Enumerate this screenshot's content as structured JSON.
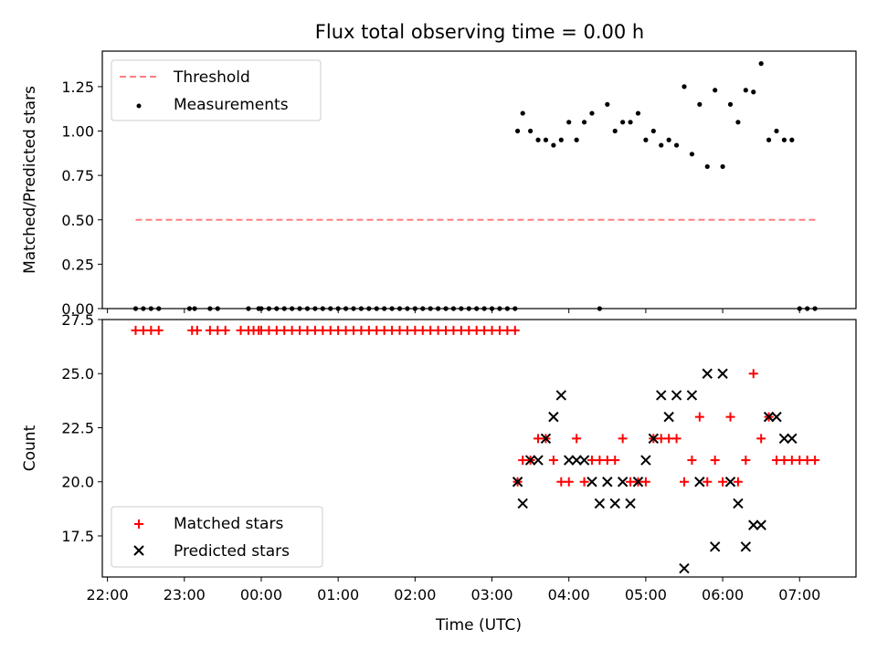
{
  "chart_data": [
    {
      "type": "scatter",
      "title": "Flux total observing time = 0.00 h",
      "xlabel": "",
      "ylabel": "Matched/Predicted stars",
      "xlim": [
        "21:56",
        "07:44"
      ],
      "ylim": [
        0,
        1.45
      ],
      "yticks": [
        "0.00",
        "0.25",
        "0.50",
        "0.75",
        "1.00",
        "1.25"
      ],
      "legend": "top-left",
      "grid": false,
      "threshold": {
        "name": "Threshold",
        "y": 0.5,
        "x_range": [
          "22:22",
          "07:14"
        ],
        "color": "#ff7f7f",
        "style": "dashed"
      },
      "series": [
        {
          "name": "Measurements",
          "color": "#000000",
          "marker": "dot",
          "x": [
            "22:22",
            "22:28",
            "22:34",
            "22:40",
            "23:04",
            "23:08",
            "23:20",
            "23:26",
            "23:50",
            "23:58",
            "00:00",
            "00:06",
            "00:12",
            "00:18",
            "00:24",
            "00:30",
            "00:36",
            "00:42",
            "00:48",
            "00:54",
            "01:00",
            "01:06",
            "01:12",
            "01:18",
            "01:24",
            "01:30",
            "01:36",
            "01:42",
            "01:48",
            "01:54",
            "02:00",
            "02:06",
            "02:12",
            "02:18",
            "02:24",
            "02:30",
            "02:36",
            "02:42",
            "02:48",
            "02:54",
            "03:00",
            "03:06",
            "03:12",
            "03:18",
            "03:20",
            "03:24",
            "03:30",
            "03:36",
            "03:42",
            "03:48",
            "03:54",
            "04:00",
            "04:06",
            "04:12",
            "04:18",
            "04:24",
            "04:30",
            "04:36",
            "04:42",
            "04:48",
            "04:54",
            "05:00",
            "05:06",
            "05:12",
            "05:18",
            "05:24",
            "05:30",
            "05:36",
            "05:42",
            "05:48",
            "05:54",
            "06:00",
            "06:06",
            "06:12",
            "06:18",
            "06:24",
            "06:30",
            "06:36",
            "06:42",
            "06:48",
            "06:54",
            "07:00",
            "07:06",
            "07:12"
          ],
          "y": [
            0,
            0,
            0,
            0,
            0,
            0,
            0,
            0,
            0,
            0,
            0,
            0,
            0,
            0,
            0,
            0,
            0,
            0,
            0,
            0,
            0,
            0,
            0,
            0,
            0,
            0,
            0,
            0,
            0,
            0,
            0,
            0,
            0,
            0,
            0,
            0,
            0,
            0,
            0,
            0,
            0,
            0,
            0,
            0,
            1.0,
            1.1,
            1.0,
            0.95,
            0.95,
            0.92,
            0.95,
            1.05,
            0.95,
            1.05,
            1.1,
            0,
            1.15,
            1.0,
            1.05,
            1.05,
            1.1,
            0.95,
            1.0,
            0.92,
            0.95,
            0.92,
            1.25,
            0.87,
            1.15,
            0.8,
            1.23,
            0.8,
            1.15,
            1.05,
            1.23,
            1.22,
            1.38,
            0.95,
            1.0,
            0.95,
            0.95,
            0,
            0,
            0
          ]
        }
      ]
    },
    {
      "type": "scatter",
      "title": "",
      "xlabel": "Time (UTC)",
      "ylabel": "Count",
      "xlim": [
        "21:56",
        "07:44"
      ],
      "ylim": [
        15.6,
        27.5
      ],
      "yticks": [
        "17.5",
        "20.0",
        "22.5",
        "25.0",
        "27.5"
      ],
      "xticks": [
        "22:00",
        "23:00",
        "00:00",
        "01:00",
        "02:00",
        "03:00",
        "04:00",
        "05:00",
        "06:00",
        "07:00"
      ],
      "legend": "bottom-left",
      "grid": false,
      "series": [
        {
          "name": "Matched stars",
          "color": "#ff0000",
          "marker": "plus",
          "x": [
            "22:22",
            "22:28",
            "22:34",
            "22:40",
            "23:06",
            "23:10",
            "23:20",
            "23:26",
            "23:32",
            "23:44",
            "23:50",
            "23:54",
            "23:58",
            "00:00",
            "00:06",
            "00:12",
            "00:18",
            "00:24",
            "00:30",
            "00:36",
            "00:42",
            "00:48",
            "00:54",
            "01:00",
            "01:06",
            "01:12",
            "01:18",
            "01:24",
            "01:30",
            "01:36",
            "01:42",
            "01:48",
            "01:54",
            "02:00",
            "02:06",
            "02:12",
            "02:18",
            "02:24",
            "02:30",
            "02:36",
            "02:42",
            "02:48",
            "02:54",
            "03:00",
            "03:06",
            "03:12",
            "03:18",
            "03:20",
            "03:24",
            "03:30",
            "03:36",
            "03:42",
            "03:48",
            "03:54",
            "04:00",
            "04:06",
            "04:12",
            "04:18",
            "04:24",
            "04:30",
            "04:36",
            "04:42",
            "04:48",
            "04:54",
            "05:00",
            "05:06",
            "05:12",
            "05:18",
            "05:24",
            "05:30",
            "05:36",
            "05:42",
            "05:48",
            "05:54",
            "06:00",
            "06:06",
            "06:12",
            "06:18",
            "06:24",
            "06:30",
            "06:36",
            "06:42",
            "06:48",
            "06:54",
            "07:00",
            "07:06",
            "07:12"
          ],
          "y": [
            27,
            27,
            27,
            27,
            27,
            27,
            27,
            27,
            27,
            27,
            27,
            27,
            27,
            27,
            27,
            27,
            27,
            27,
            27,
            27,
            27,
            27,
            27,
            27,
            27,
            27,
            27,
            27,
            27,
            27,
            27,
            27,
            27,
            27,
            27,
            27,
            27,
            27,
            27,
            27,
            27,
            27,
            27,
            27,
            27,
            27,
            27,
            20,
            21,
            21,
            22,
            22,
            21,
            20,
            20,
            22,
            20,
            21,
            21,
            21,
            21,
            22,
            20,
            20,
            20,
            22,
            22,
            22,
            22,
            20,
            21,
            23,
            20,
            21,
            20,
            23,
            20,
            21,
            25,
            22,
            23,
            21,
            21,
            21,
            21,
            21,
            21
          ]
        },
        {
          "name": "Predicted stars",
          "color": "#000000",
          "marker": "x",
          "x": [
            "03:20",
            "03:24",
            "03:30",
            "03:36",
            "03:42",
            "03:48",
            "03:54",
            "04:00",
            "04:06",
            "04:12",
            "04:18",
            "04:24",
            "04:30",
            "04:36",
            "04:42",
            "04:48",
            "04:54",
            "05:00",
            "05:06",
            "05:12",
            "05:18",
            "05:24",
            "05:30",
            "05:36",
            "05:42",
            "05:48",
            "05:54",
            "06:00",
            "06:06",
            "06:12",
            "06:18",
            "06:24",
            "06:30",
            "06:36",
            "06:42",
            "06:48",
            "06:54"
          ],
          "y": [
            20,
            19,
            21,
            21,
            22,
            23,
            24,
            21,
            21,
            21,
            20,
            19,
            20,
            19,
            20,
            19,
            20,
            21,
            22,
            24,
            23,
            24,
            16,
            24,
            20,
            25,
            17,
            25,
            20,
            19,
            17,
            18,
            18,
            23,
            23,
            22,
            22
          ]
        }
      ]
    }
  ]
}
